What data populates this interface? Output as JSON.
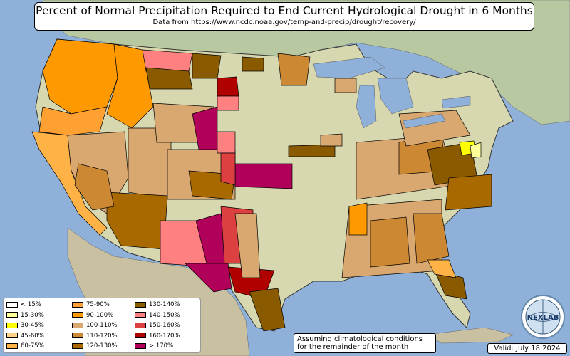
{
  "header": {
    "title": "Percent of Normal Precipitation Required to End Current Hydrological Drought in 6 Months",
    "subtitle": "Data from https://www.ncdc.noaa.gov/temp-and-precip/drought/recovery/"
  },
  "legend": {
    "items": [
      {
        "label": "< 15%",
        "color": "#ffffff"
      },
      {
        "label": "15-30%",
        "color": "#ffff99"
      },
      {
        "label": "30-45%",
        "color": "#ffff00"
      },
      {
        "label": "45-60%",
        "color": "#ffd08a"
      },
      {
        "label": "60-75%",
        "color": "#ffb347"
      },
      {
        "label": "75-90%",
        "color": "#ffa033"
      },
      {
        "label": "90-100%",
        "color": "#ff9900"
      },
      {
        "label": "100-110%",
        "color": "#d9a870"
      },
      {
        "label": "110-120%",
        "color": "#cc8833"
      },
      {
        "label": "120-130%",
        "color": "#a86a00"
      },
      {
        "label": "130-140%",
        "color": "#8a5a00"
      },
      {
        "label": "140-150%",
        "color": "#ff8080"
      },
      {
        "label": "150-160%",
        "color": "#dd4040"
      },
      {
        "label": "160-170%",
        "color": "#b00000"
      },
      {
        "label": "> 170%",
        "color": "#b0005a"
      }
    ]
  },
  "note": {
    "line1": "Assuming climatological conditions",
    "line2": "for the remainder of the month"
  },
  "valid": "Valid: July 18 2024",
  "logo": {
    "text": "NEXLAB"
  },
  "colors": {
    "ocean": "#8fb0d9",
    "land": "#d8d8b0",
    "canada": "#b8c8a0",
    "mexico": "#c8c0a0",
    "great_lakes": "#8fb0d9"
  }
}
